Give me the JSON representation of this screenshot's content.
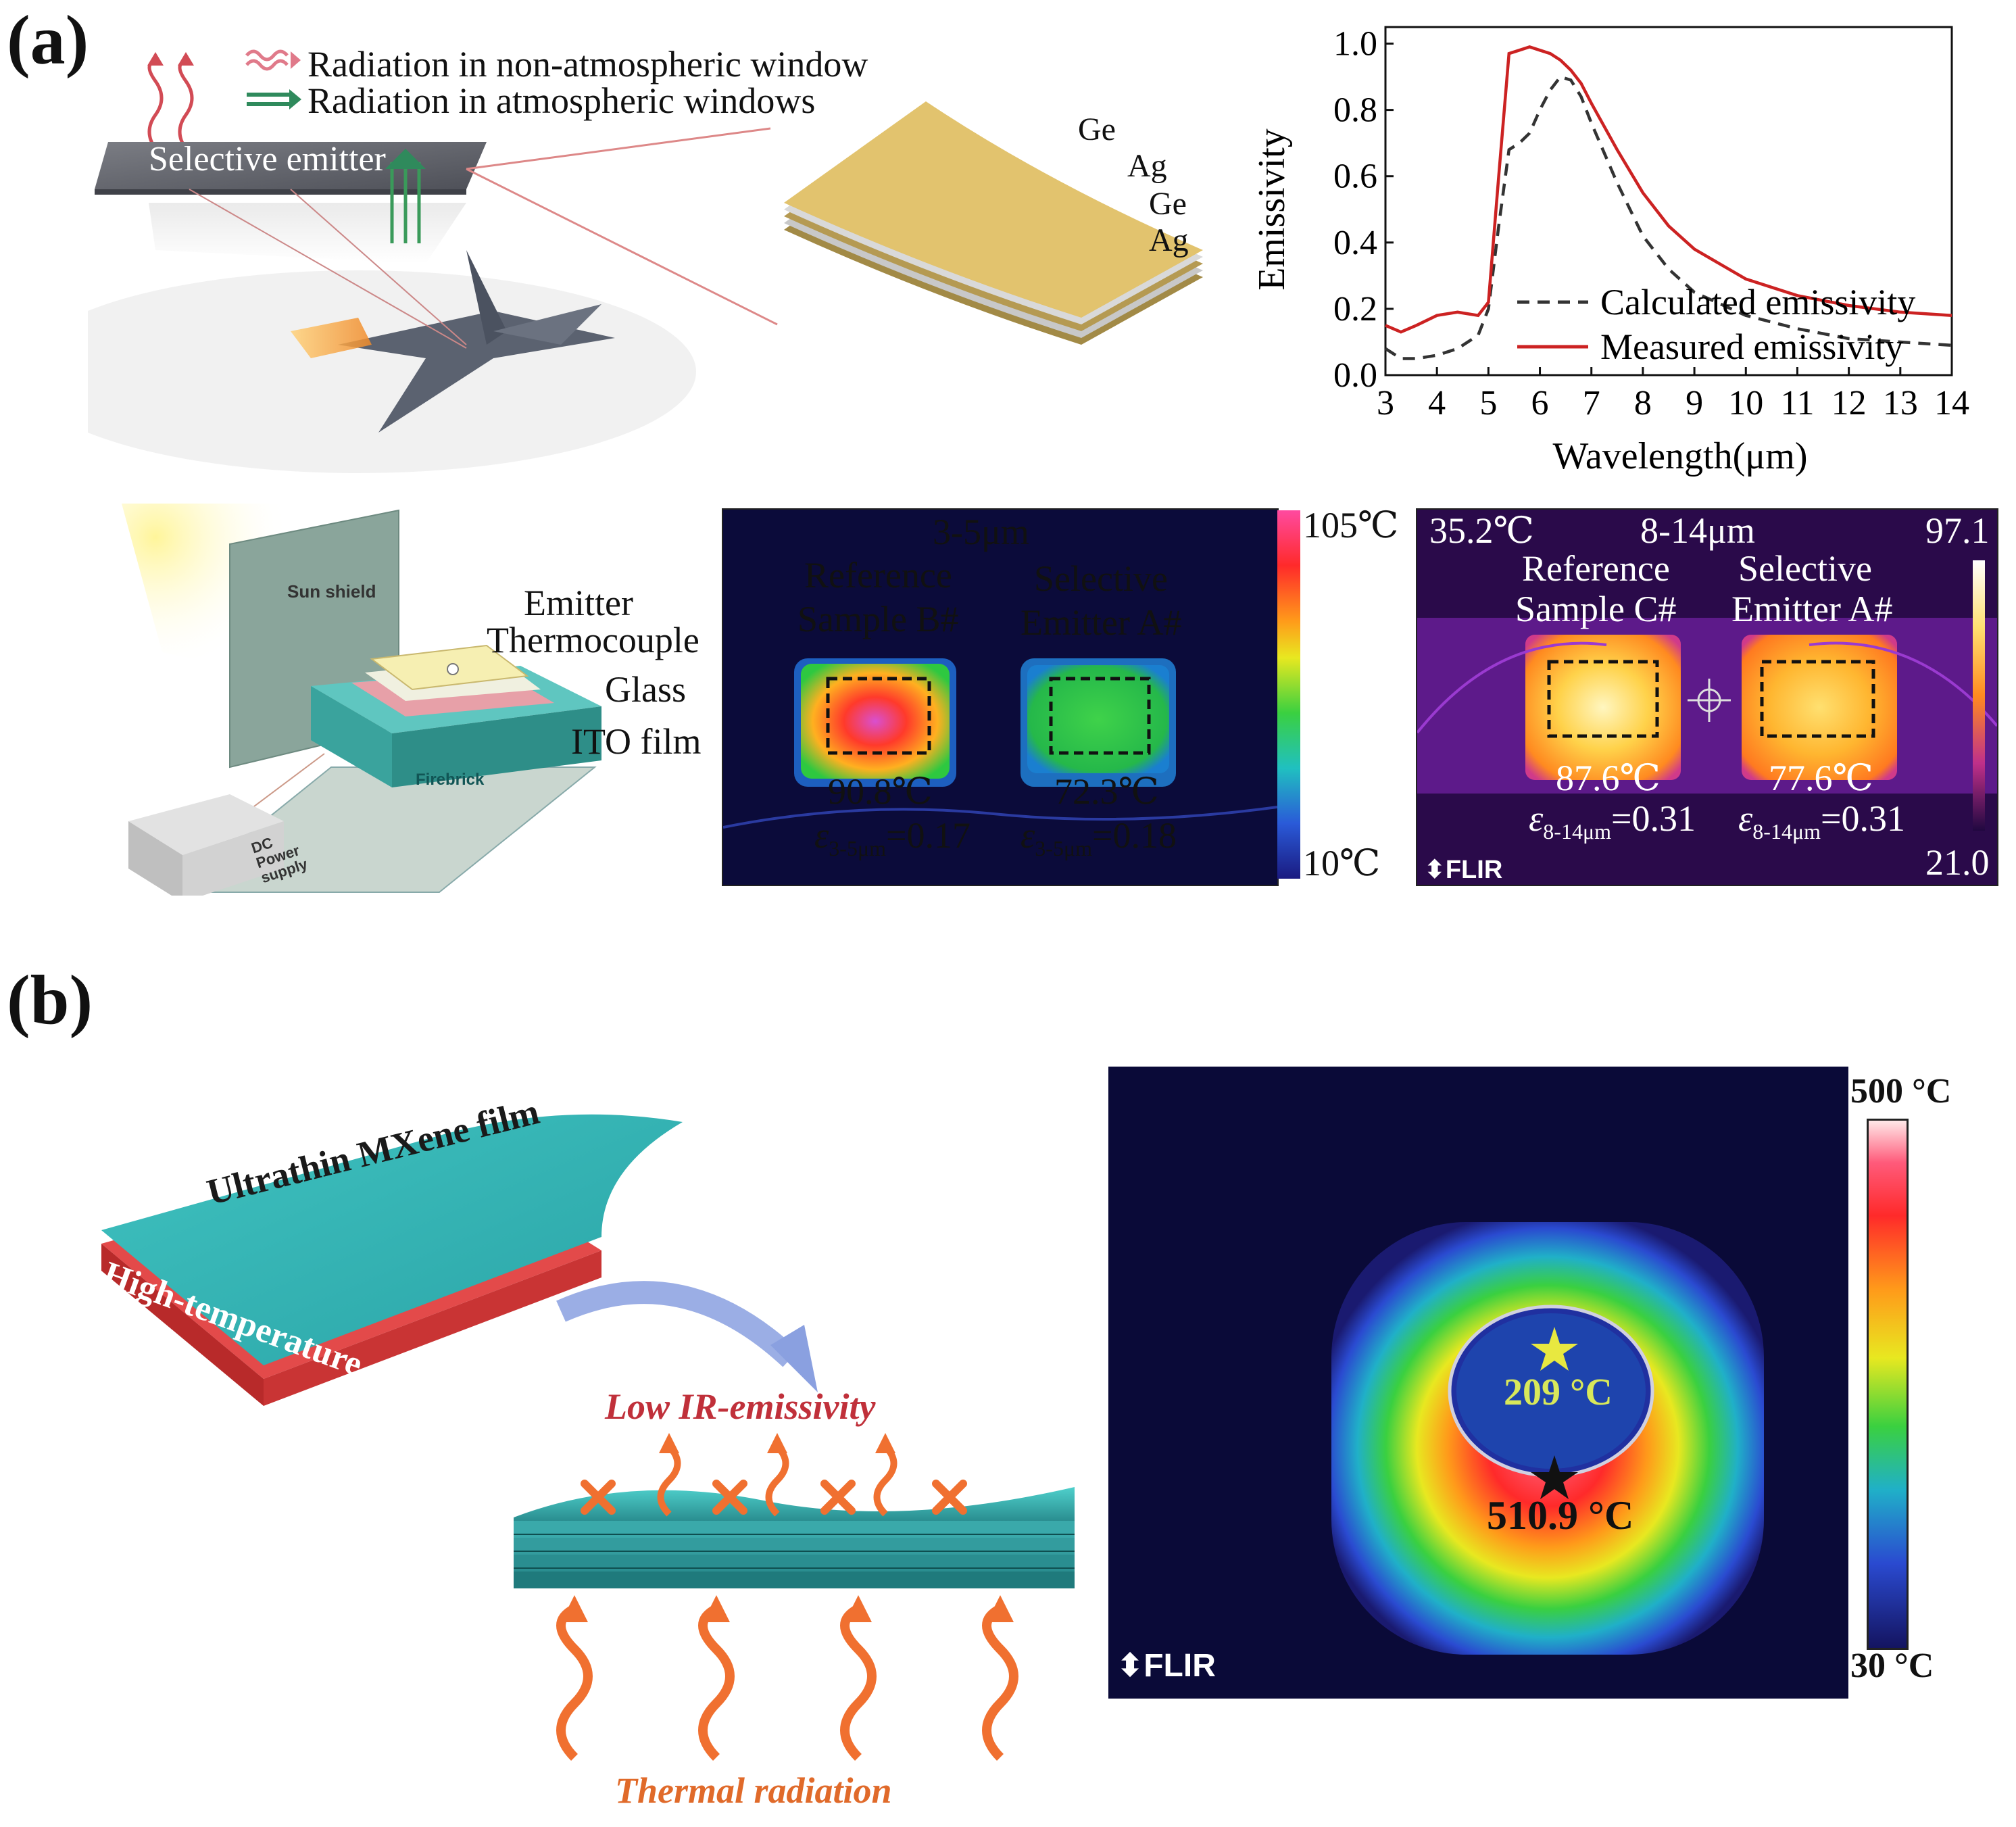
{
  "panel_a": {
    "label": "(a)",
    "legend": {
      "non_atm": "Radiation in non-atmospheric window",
      "atm": "Radiation in atmospheric windows"
    },
    "emitter_label": "Selective emitter",
    "layers": [
      "Ge",
      "Ag",
      "Ge",
      "Ag"
    ],
    "setup": {
      "sun_shield": "Sun shield",
      "firebrick": "Firebrick",
      "dc_power": [
        "DC",
        "Power",
        "supply"
      ],
      "emitter": "Emitter",
      "thermocouple": "Thermocouple",
      "glass": "Glass",
      "ito": "ITO film"
    },
    "thermal_mid": {
      "band": "3-5μm",
      "ref_line1": "Reference",
      "ref_line2": "Sample B#",
      "sel_line1": "Selective",
      "sel_line2": "Emitter A#",
      "ref_temp": "90.8℃",
      "sel_temp": "72.3℃",
      "eps_sym": "ε",
      "eps_sub": "3-5μm",
      "ref_eps": "=0.17",
      "sel_eps": "=0.18",
      "scale_max": "105℃",
      "scale_min": "10℃"
    },
    "thermal_far": {
      "corner_temp": "35.2℃",
      "band": "8-14μm",
      "scale_max": "97.1",
      "scale_min": "21.0",
      "ref_line1": "Reference",
      "ref_line2": "Sample C#",
      "sel_line1": "Selective",
      "sel_line2": "Emitter A#",
      "ref_temp": "87.6℃",
      "sel_temp": "77.6℃",
      "eps_sym": "ε",
      "eps_sub": "8-14μm",
      "ref_eps": "=0.31",
      "sel_eps": "=0.31",
      "brand": "FLIR"
    },
    "chart_data": {
      "type": "line",
      "title": "",
      "xlabel": "Wavelength(μm)",
      "ylabel": "Emissivity",
      "xlim": [
        3,
        14
      ],
      "ylim": [
        0.0,
        1.05
      ],
      "xticks": [
        3,
        4,
        5,
        6,
        7,
        8,
        9,
        10,
        11,
        12,
        13,
        14
      ],
      "yticks": [
        0.0,
        0.2,
        0.4,
        0.6,
        0.8,
        1.0
      ],
      "ytick_labels": [
        "0.0",
        "0.2",
        "0.4",
        "0.6",
        "0.8",
        "1.0"
      ],
      "grid": false,
      "legend_position": "center-right",
      "series": [
        {
          "name": "Calculated emissivity",
          "color": "#333333",
          "dash": "dashed",
          "x": [
            3.0,
            3.3,
            3.6,
            4.0,
            4.4,
            4.8,
            5.0,
            5.2,
            5.4,
            5.6,
            5.8,
            6.0,
            6.2,
            6.4,
            6.6,
            6.8,
            7.0,
            7.5,
            8.0,
            8.5,
            9.0,
            10.0,
            11.0,
            12.0,
            13.0,
            14.0
          ],
          "y": [
            0.08,
            0.05,
            0.05,
            0.06,
            0.08,
            0.12,
            0.2,
            0.45,
            0.68,
            0.7,
            0.73,
            0.8,
            0.86,
            0.9,
            0.89,
            0.84,
            0.76,
            0.58,
            0.42,
            0.32,
            0.25,
            0.18,
            0.14,
            0.11,
            0.1,
            0.09
          ]
        },
        {
          "name": "Measured emissivity",
          "color": "#cc2222",
          "dash": "solid",
          "x": [
            3.0,
            3.3,
            3.6,
            4.0,
            4.4,
            4.8,
            5.0,
            5.2,
            5.4,
            5.6,
            5.8,
            6.0,
            6.2,
            6.4,
            6.6,
            6.8,
            7.0,
            7.5,
            8.0,
            8.5,
            9.0,
            10.0,
            11.0,
            12.0,
            13.0,
            14.0
          ],
          "y": [
            0.15,
            0.13,
            0.15,
            0.18,
            0.19,
            0.18,
            0.22,
            0.6,
            0.97,
            0.98,
            0.99,
            0.98,
            0.97,
            0.95,
            0.92,
            0.88,
            0.82,
            0.68,
            0.55,
            0.45,
            0.38,
            0.29,
            0.24,
            0.21,
            0.19,
            0.18
          ]
        }
      ]
    }
  },
  "panel_b": {
    "label": "(b)",
    "film": "Ultrathin MXene film",
    "object": "High-temperature object",
    "low_ir": "Low IR-emissivity",
    "thermal_radiation": "Thermal radiation",
    "thermal": {
      "scale_max": "500 °C",
      "scale_min": "30 °C",
      "inner_temp": "209 °C",
      "outer_temp": "510.9 °C",
      "brand": "FLIR"
    }
  }
}
